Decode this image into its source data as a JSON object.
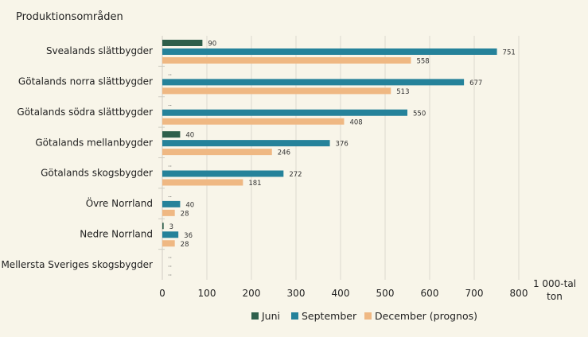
{
  "chart_data": {
    "type": "bar",
    "orientation": "horizontal",
    "title": "Produktionsområden",
    "xlabel": "1 000-tal ton",
    "xlim": [
      0,
      800
    ],
    "xticks": [
      0,
      100,
      200,
      300,
      400,
      500,
      600,
      700,
      800
    ],
    "grid": true,
    "legend_position": "bottom",
    "categories": [
      "Svealands slättbygder",
      "Götalands norra slättbygder",
      "Götalands södra slättbygder",
      "Götalands mellanbygder",
      "Götalands skogsbygder",
      "Övre Norrland",
      "Nedre Norrland",
      "Mellersta Sveriges skogsbygder"
    ],
    "missing_label": "..",
    "series": [
      {
        "name": "Juni",
        "color": "#2e5f4b",
        "values": [
          90,
          null,
          null,
          40,
          null,
          null,
          3,
          null
        ]
      },
      {
        "name": "September",
        "color": "#25829a",
        "values": [
          751,
          677,
          550,
          376,
          272,
          40,
          36,
          null
        ]
      },
      {
        "name": "December (prognos)",
        "color": "#efb883",
        "values": [
          558,
          513,
          408,
          246,
          181,
          28,
          28,
          null
        ]
      }
    ]
  },
  "unit_line1": "1 000-tal",
  "unit_line2": "ton"
}
